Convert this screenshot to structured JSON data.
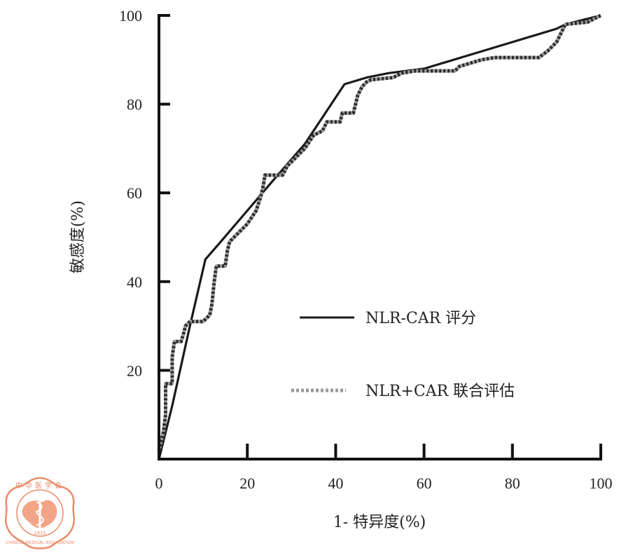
{
  "chart_data": {
    "type": "line",
    "xlabel": "1- 特异度(%)",
    "ylabel": "敏感度(%)",
    "xlim": [
      0,
      100
    ],
    "ylim": [
      0,
      100
    ],
    "x_ticks": [
      0,
      20,
      40,
      60,
      80,
      100
    ],
    "y_ticks": [
      20,
      40,
      60,
      80,
      100
    ],
    "grid": false,
    "legend_position": "center-right",
    "series": [
      {
        "name": "NLR-CAR 评分",
        "style": "solid",
        "color": "#1a1a1a",
        "points": [
          [
            0,
            0
          ],
          [
            3,
            12
          ],
          [
            7,
            30
          ],
          [
            10.5,
            45
          ],
          [
            14,
            49
          ],
          [
            20,
            56
          ],
          [
            26,
            63
          ],
          [
            33,
            71
          ],
          [
            42,
            84.5
          ],
          [
            47,
            86
          ],
          [
            52,
            87
          ],
          [
            60,
            88
          ],
          [
            70,
            91
          ],
          [
            80,
            94
          ],
          [
            90,
            97
          ],
          [
            92,
            98
          ],
          [
            100,
            100
          ]
        ]
      },
      {
        "name": "NLR+CAR 联合评估",
        "style": "dotted",
        "color": "#2a2a2a",
        "points": [
          [
            0,
            2
          ],
          [
            1,
            6
          ],
          [
            1.5,
            10
          ],
          [
            1.5,
            17
          ],
          [
            3,
            17
          ],
          [
            3,
            23
          ],
          [
            3.5,
            26.5
          ],
          [
            5,
            26.5
          ],
          [
            5.5,
            28
          ],
          [
            6,
            30
          ],
          [
            7,
            31
          ],
          [
            10,
            31
          ],
          [
            11.5,
            32.5
          ],
          [
            12,
            35
          ],
          [
            12.5,
            40
          ],
          [
            13,
            43.5
          ],
          [
            15,
            43.5
          ],
          [
            15.5,
            47
          ],
          [
            16,
            49
          ],
          [
            18,
            51
          ],
          [
            20,
            53
          ],
          [
            22,
            56
          ],
          [
            23,
            59
          ],
          [
            23.5,
            61
          ],
          [
            24,
            64
          ],
          [
            28,
            64
          ],
          [
            29,
            66
          ],
          [
            31,
            68
          ],
          [
            33,
            70
          ],
          [
            35,
            73
          ],
          [
            37,
            74
          ],
          [
            38,
            76
          ],
          [
            41,
            76
          ],
          [
            41.5,
            78
          ],
          [
            44,
            78
          ],
          [
            44.5,
            80
          ],
          [
            45,
            82
          ],
          [
            46,
            84
          ],
          [
            47,
            85
          ],
          [
            48,
            85.5
          ],
          [
            53,
            86
          ],
          [
            55,
            87
          ],
          [
            58,
            87.5
          ],
          [
            61,
            87.5
          ],
          [
            67,
            87.5
          ],
          [
            68,
            88.5
          ],
          [
            73,
            90
          ],
          [
            76,
            90.5
          ],
          [
            82,
            90.5
          ],
          [
            86,
            90.5
          ],
          [
            88,
            92
          ],
          [
            90,
            94
          ],
          [
            91,
            96
          ],
          [
            92,
            98
          ],
          [
            97,
            98.5
          ],
          [
            99,
            99.5
          ],
          [
            100,
            100
          ]
        ]
      }
    ]
  },
  "watermark": {
    "text_cn": "中华医学会",
    "text_en": "CHINESE MEDICAL ASSOCIATION",
    "year": "1915",
    "color": "#e98b6a"
  }
}
